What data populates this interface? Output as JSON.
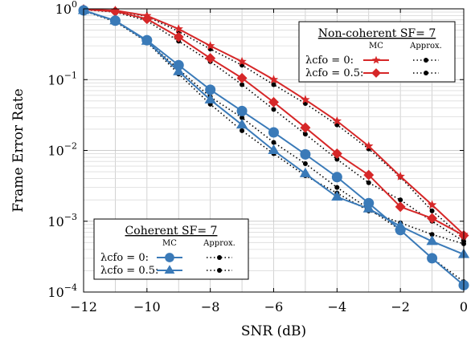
{
  "chart_data": {
    "type": "line",
    "xlabel": "SNR (dB)",
    "ylabel": "Frame Error Rate",
    "xlim": [
      -12,
      0
    ],
    "ylim": [
      0.0001,
      1
    ],
    "yscale": "log",
    "x_ticks": [
      -12,
      -10,
      -8,
      -6,
      -4,
      -2,
      0
    ],
    "x_tick_labels": [
      "−12",
      "−10",
      "−8",
      "−6",
      "−4",
      "−2",
      "0"
    ],
    "y_ticks": [
      0.0001,
      0.001,
      0.01,
      0.1,
      1
    ],
    "y_tick_labels": [
      {
        "base": "10",
        "exp": "−4"
      },
      {
        "base": "10",
        "exp": "−3"
      },
      {
        "base": "10",
        "exp": "−2"
      },
      {
        "base": "10",
        "exp": "−1"
      },
      {
        "base": "10",
        "exp": "0"
      }
    ],
    "grid": true,
    "x": [
      -12,
      -11,
      -10,
      -9,
      -8,
      -7,
      -6,
      -5,
      -4,
      -3,
      -2,
      -1,
      0
    ],
    "series": [
      {
        "group": "noncoherent",
        "kind": "mc",
        "lambda": "0",
        "color": "#d62728",
        "marker": "star",
        "values": [
          0.98,
          0.95,
          0.8,
          0.52,
          0.3,
          0.18,
          0.1,
          0.052,
          0.026,
          0.0115,
          0.0043,
          0.0017,
          0.00065
        ]
      },
      {
        "group": "noncoherent",
        "kind": "approx",
        "lambda": "0",
        "color": "#000000",
        "marker": "dot",
        "values": [
          0.97,
          0.93,
          0.78,
          0.48,
          0.27,
          0.16,
          0.085,
          0.046,
          0.023,
          0.0105,
          0.0042,
          0.0014,
          0.00058
        ]
      },
      {
        "group": "noncoherent",
        "kind": "mc",
        "lambda": "0.5",
        "color": "#d62728",
        "marker": "diamond",
        "values": [
          0.98,
          0.92,
          0.72,
          0.4,
          0.2,
          0.105,
          0.048,
          0.021,
          0.009,
          0.0045,
          0.0016,
          0.0011,
          0.00063
        ]
      },
      {
        "group": "noncoherent",
        "kind": "approx",
        "lambda": "0.5",
        "color": "#000000",
        "marker": "dot",
        "values": [
          0.97,
          0.9,
          0.68,
          0.35,
          0.18,
          0.085,
          0.038,
          0.017,
          0.0075,
          0.0035,
          0.002,
          0.001,
          0.00052
        ]
      },
      {
        "group": "coherent",
        "kind": "mc",
        "lambda": "0",
        "color": "#3a7ab8",
        "marker": "circle",
        "values": [
          0.95,
          0.68,
          0.36,
          0.16,
          0.072,
          0.036,
          0.018,
          0.0088,
          0.0042,
          0.0018,
          0.00075,
          0.0003,
          0.000125
        ]
      },
      {
        "group": "coherent",
        "kind": "approx",
        "lambda": "0",
        "color": "#000000",
        "marker": "dot",
        "values": [
          0.94,
          0.66,
          0.35,
          0.14,
          0.057,
          0.029,
          0.013,
          0.0065,
          0.003,
          0.0015,
          0.00075,
          0.0003,
          0.00014
        ]
      },
      {
        "group": "coherent",
        "kind": "mc",
        "lambda": "0.5",
        "color": "#3a7ab8",
        "marker": "triangle",
        "values": [
          0.95,
          0.68,
          0.35,
          0.13,
          0.052,
          0.023,
          0.01,
          0.0047,
          0.0022,
          0.0015,
          0.00085,
          0.00052,
          0.00034
        ]
      },
      {
        "group": "coherent",
        "kind": "approx",
        "lambda": "0.5",
        "color": "#000000",
        "marker": "dot",
        "values": [
          0.94,
          0.66,
          0.34,
          0.12,
          0.045,
          0.019,
          0.009,
          0.0044,
          0.0025,
          0.0014,
          0.00095,
          0.00065,
          0.00048
        ]
      }
    ],
    "legends": [
      {
        "id": "noncoherent",
        "placement": "top-right",
        "title": "Non-coherent SF= 7",
        "col_mc": "MC",
        "col_approx": "Approx.",
        "rows": [
          "λcfo = 0:",
          "λcfo = 0.5:"
        ]
      },
      {
        "id": "coherent",
        "placement": "bottom-left",
        "title": "Coherent SF= 7",
        "col_mc": "MC",
        "col_approx": "Approx.",
        "rows": [
          "λcfo = 0:",
          "λcfo = 0.5:"
        ]
      }
    ]
  }
}
